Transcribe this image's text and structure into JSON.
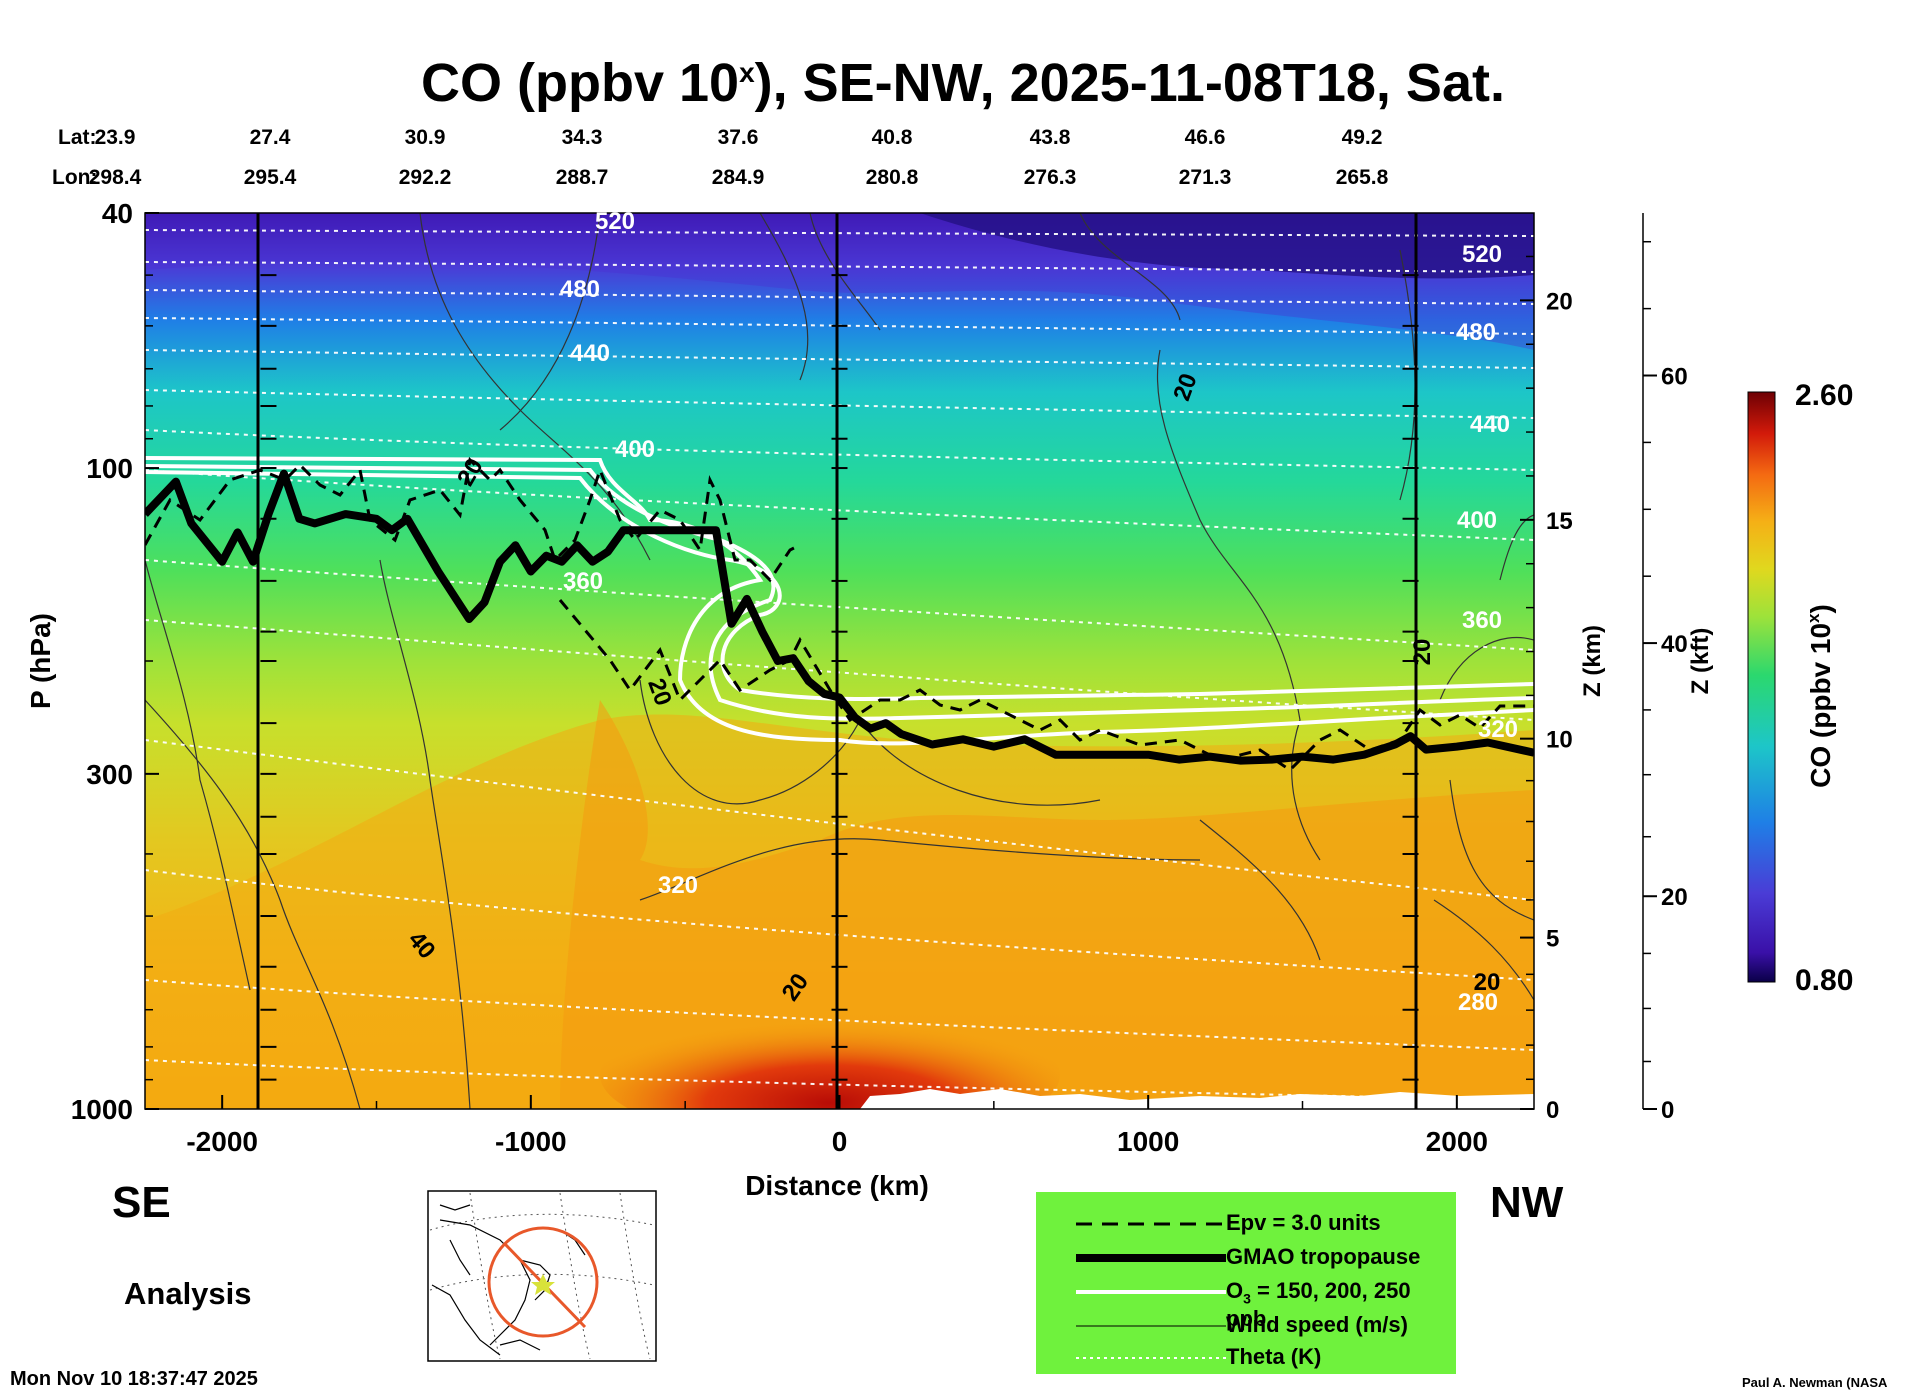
{
  "title": {
    "main": "CO (ppbv 10",
    "sup": "x",
    "rest": "), SE-NW, 2025-11-08T18, Sat."
  },
  "header": {
    "lat_label": "Lat:",
    "lon_label": "Lon:",
    "lat": [
      "23.9",
      "27.4",
      "30.9",
      "34.3",
      "37.6",
      "40.8",
      "43.8",
      "46.6",
      "49.2"
    ],
    "lon": [
      "298.4",
      "295.4",
      "292.2",
      "288.7",
      "284.9",
      "280.8",
      "276.3",
      "271.3",
      "265.8"
    ]
  },
  "axes": {
    "x_label": "Distance (km)",
    "x_ticks": [
      "-2000",
      "-1000",
      "0",
      "1000",
      "2000"
    ],
    "y_label": "P (hPa)",
    "y_ticks": [
      "40",
      "100",
      "300",
      "1000"
    ],
    "z_km_label": "Z (km)",
    "z_km_ticks": [
      "0",
      "5",
      "10",
      "15",
      "20"
    ],
    "z_kft_label": "Z (kft)",
    "z_kft_ticks": [
      "0",
      "20",
      "40",
      "60"
    ]
  },
  "colorbar": {
    "label_main": "CO (ppbv 10",
    "label_sup": "x",
    "label_end": ")",
    "max": "2.60",
    "min": "0.80"
  },
  "theta_labels": [
    "520",
    "480",
    "440",
    "400",
    "360",
    "320",
    "280",
    "520",
    "480",
    "440",
    "400",
    "360",
    "320"
  ],
  "wind_labels": [
    "20",
    "20",
    "40",
    "20",
    "20",
    "20",
    "20"
  ],
  "directions": {
    "left": "SE",
    "right": "NW"
  },
  "analysis_label": "Analysis",
  "legend": {
    "epv": "Epv = 3.0 units",
    "tropopause": "GMAO tropopause",
    "o3_pre": "O",
    "o3_sub": "3",
    "o3_post": " = 150, 200, 250 ppb",
    "wind": "Wind speed (m/s)",
    "theta": "Theta (K)"
  },
  "footer": {
    "timestamp": "Mon Nov 10 18:37:47 2025",
    "credit": "Paul A. Newman (NASA"
  },
  "colors": {
    "legend_bg": "#6ff23d",
    "map_marker": "#e8582a"
  },
  "chart_data": {
    "type": "heatmap",
    "title": "CO (ppbv 10^x), SE-NW, 2025-11-08T18, Sat.",
    "xlabel": "Distance (km)",
    "ylabel": "P (hPa)",
    "xlim": [
      -2250,
      2250
    ],
    "ylim": [
      1000,
      40
    ],
    "y_scale": "log",
    "colorbar_range": [
      0.8,
      2.6
    ],
    "colorbar_label": "CO (ppbv 10^x)",
    "secondary_axes": [
      {
        "label": "Z (km)",
        "ticks": [
          0,
          5,
          10,
          15,
          20
        ]
      },
      {
        "label": "Z (kft)",
        "ticks": [
          0,
          20,
          40,
          60
        ]
      }
    ],
    "theta_isentropes_K": [
      280,
      320,
      360,
      400,
      440,
      480,
      520
    ],
    "wind_speed_contour_labels_ms": [
      20,
      40
    ],
    "vertical_marker_lines_km": [
      -1850,
      0,
      1850
    ],
    "tropopause_series": {
      "name": "GMAO tropopause",
      "x": [
        -2250,
        -2150,
        -2100,
        -2000,
        -1950,
        -1900,
        -1850,
        -1800,
        -1750,
        -1700,
        -1600,
        -1500,
        -1450,
        -1400,
        -1300,
        -1200,
        -1150,
        -1100,
        -1050,
        -1000,
        -950,
        -900,
        -850,
        -800,
        -750,
        -700,
        -650,
        -600,
        -550,
        -500,
        -450,
        -400,
        -350,
        -300,
        -250,
        -200,
        -150,
        -100,
        -50,
        0,
        50,
        100,
        150,
        200,
        300,
        400,
        500,
        600,
        700,
        800,
        900,
        1000,
        1100,
        1200,
        1300,
        1400,
        1500,
        1600,
        1700,
        1800,
        1850,
        1900,
        2000,
        2100,
        2250
      ],
      "y": [
        118,
        105,
        122,
        140,
        126,
        140,
        118,
        102,
        120,
        122,
        118,
        120,
        125,
        120,
        145,
        172,
        162,
        140,
        132,
        145,
        137,
        140,
        132,
        140,
        135,
        125,
        125,
        125,
        125,
        125,
        125,
        125,
        175,
        160,
        180,
        200,
        198,
        215,
        225,
        228,
        245,
        255,
        250,
        260,
        270,
        265,
        272,
        265,
        280,
        280,
        280,
        280,
        285,
        282,
        286,
        285,
        282,
        285,
        280,
        270,
        262,
        275,
        272,
        268,
        278
      ]
    }
  }
}
